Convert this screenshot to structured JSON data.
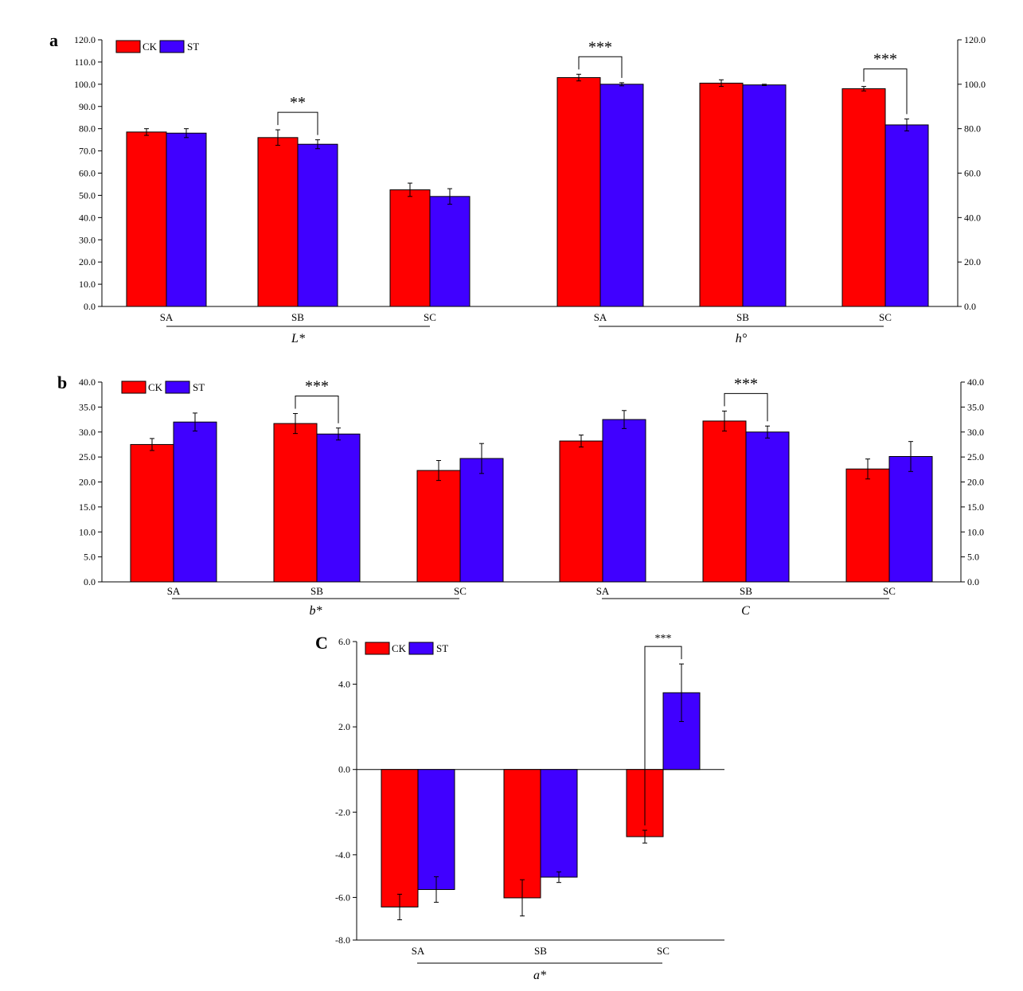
{
  "colors": {
    "CK": "#ff0000",
    "ST": "#4000ff"
  },
  "legend": [
    "CK",
    "ST"
  ],
  "chart_data": [
    {
      "panel": "a",
      "type": "bar",
      "ylim": [
        0,
        120
      ],
      "ytick_step": 10,
      "ytick_labels": [
        "0.0",
        "10.0",
        "20.0",
        "30.0",
        "40.0",
        "50.0",
        "60.0",
        "70.0",
        "80.0",
        "90.0",
        "100.0",
        "110.0",
        "120.0"
      ],
      "right_ytick_labels": [
        "0.0",
        "20.0",
        "40.0",
        "60.0",
        "80.0",
        "100.0",
        "120.0"
      ],
      "legend_position": "top-left",
      "groups": [
        {
          "label": "L*",
          "categories": [
            "SA",
            "SB",
            "SC"
          ],
          "series": [
            {
              "name": "CK",
              "values": [
                78.5,
                76.0,
                52.5
              ],
              "errors": [
                1.5,
                3.5,
                3.0
              ]
            },
            {
              "name": "ST",
              "values": [
                78.0,
                73.0,
                49.5
              ],
              "errors": [
                2.0,
                2.0,
                3.5
              ]
            }
          ],
          "significance": [
            {
              "category": "SB",
              "label": "**"
            }
          ]
        },
        {
          "label": "h°",
          "categories": [
            "SA",
            "SB",
            "SC"
          ],
          "series": [
            {
              "name": "CK",
              "values": [
                103.0,
                100.5,
                98.0
              ],
              "errors": [
                1.5,
                1.5,
                1.0
              ]
            },
            {
              "name": "ST",
              "values": [
                100.0,
                99.7,
                81.7
              ],
              "errors": [
                0.7,
                0.3,
                2.7
              ]
            }
          ],
          "significance": [
            {
              "category": "SA",
              "label": "***"
            },
            {
              "category": "SC",
              "label": "***"
            }
          ]
        }
      ]
    },
    {
      "panel": "b",
      "type": "bar",
      "ylim": [
        0,
        40
      ],
      "ytick_step": 5,
      "ytick_labels": [
        "0.0",
        "5.0",
        "10.0",
        "15.0",
        "20.0",
        "25.0",
        "30.0",
        "35.0",
        "40.0"
      ],
      "right_ytick_labels": [
        "0.0",
        "5.0",
        "10.0",
        "15.0",
        "20.0",
        "25.0",
        "30.0",
        "35.0",
        "40.0"
      ],
      "legend_position": "top-left",
      "groups": [
        {
          "label": "b*",
          "categories": [
            "SA",
            "SB",
            "SC"
          ],
          "series": [
            {
              "name": "CK",
              "values": [
                27.5,
                31.7,
                22.3
              ],
              "errors": [
                1.2,
                2.0,
                2.0
              ]
            },
            {
              "name": "ST",
              "values": [
                32.0,
                29.6,
                24.7
              ],
              "errors": [
                1.8,
                1.2,
                3.0
              ]
            }
          ],
          "significance": [
            {
              "category": "SB",
              "label": "***"
            }
          ]
        },
        {
          "label": "C",
          "categories": [
            "SA",
            "SB",
            "SC"
          ],
          "series": [
            {
              "name": "CK",
              "values": [
                28.2,
                32.2,
                22.6
              ],
              "errors": [
                1.2,
                2.0,
                2.0
              ]
            },
            {
              "name": "ST",
              "values": [
                32.5,
                30.0,
                25.1
              ],
              "errors": [
                1.8,
                1.2,
                3.0
              ]
            }
          ],
          "significance": [
            {
              "category": "SB",
              "label": "***"
            }
          ]
        }
      ]
    },
    {
      "panel": "c",
      "type": "bar",
      "ylim": [
        -8,
        6
      ],
      "ytick_step": 2,
      "ytick_labels": [
        "-8.0",
        "-6.0",
        "-4.0",
        "-2.0",
        "0.0",
        "2.0",
        "4.0",
        "6.0"
      ],
      "legend_position": "top-left",
      "groups": [
        {
          "label": "a*",
          "categories": [
            "SA",
            "SB",
            "SC"
          ],
          "series": [
            {
              "name": "CK",
              "values": [
                -6.45,
                -6.02,
                -3.15
              ],
              "errors": [
                0.6,
                0.85,
                0.3
              ]
            },
            {
              "name": "ST",
              "values": [
                -5.63,
                -5.05,
                3.6
              ],
              "errors": [
                0.6,
                0.25,
                1.35
              ]
            }
          ],
          "significance": [
            {
              "category": "SC",
              "label": "***"
            }
          ]
        }
      ]
    }
  ]
}
